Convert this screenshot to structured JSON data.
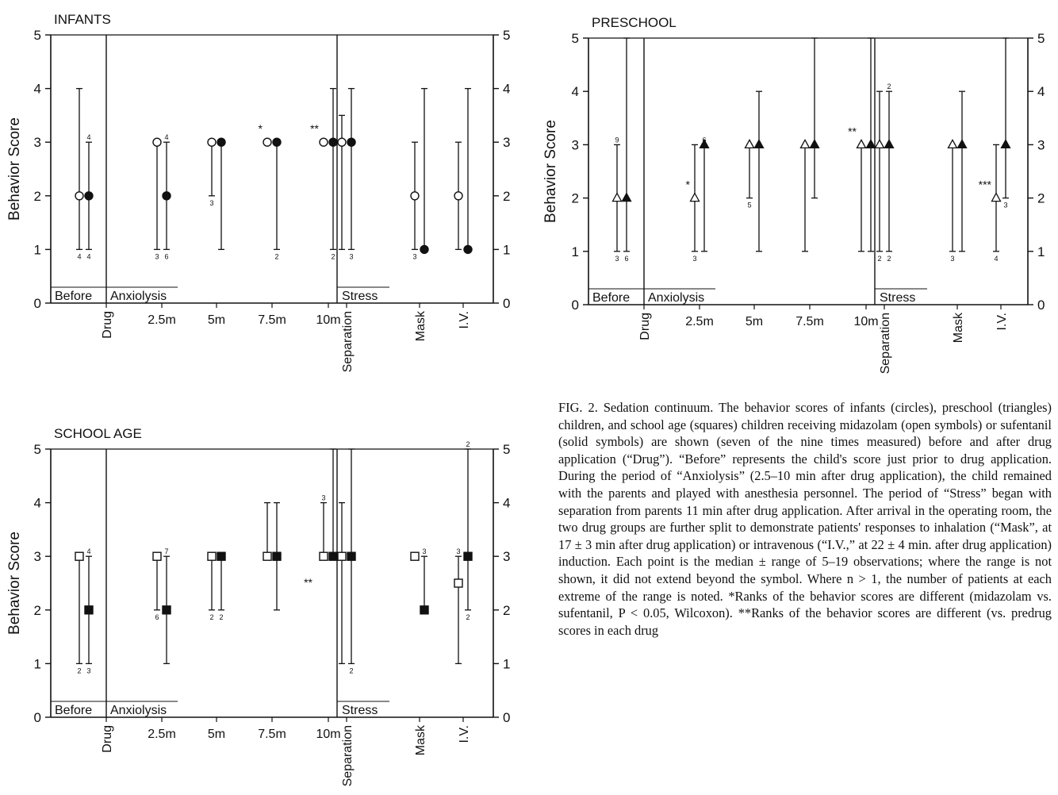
{
  "figure": {
    "caption_label": "FIG. 2.",
    "caption_text": "Sedation continuum. The behavior scores of infants (circles), preschool (triangles) children, and school age (squares) children receiving midazolam (open symbols) or sufentanil (solid symbols) are shown (seven of the nine times measured) before and after drug application (“Drug”). “Before” represents the child's score just prior to drug application. During the period of “Anxiolysis” (2.5–10 min after drug application), the child remained with the parents and played with anesthesia personnel. The period of “Stress” began with separation from parents 11 min after drug application. After arrival in the operating room, the two drug groups are further split to demonstrate patients' responses to inhalation (“Mask”, at 17 ± 3 min after drug application) or intravenous (“I.V.,” at 22 ± 4 min. after drug application) induction. Each point is the median ± range of 5–19 observations; where the range is not shown, it did not extend beyond the symbol. Where n > 1, the number of patients at each extreme of the range is noted. *Ranks of the behavior scores are different (midazolam vs. sufentanil, P < 0.05, Wilcoxon). **Ranks of the behavior scores are different (vs. predrug scores in each drug"
  },
  "chart_data": [
    {
      "type": "scatter",
      "title": "INFANTS",
      "ylabel": "Behavior Score",
      "ylim": [
        0,
        5
      ],
      "yticks": [
        "0",
        "1",
        "2",
        "3",
        "4",
        "5"
      ],
      "xticks": [
        "Drug",
        "2.5m",
        "5m",
        "7.5m",
        "10m",
        "Separation",
        "Mask",
        "I.V."
      ],
      "period_labels": [
        "Before",
        "Anxiolysis",
        "Stress"
      ],
      "marker": "circle",
      "series": [
        {
          "name": "midazolam",
          "fill": "open",
          "points": [
            {
              "time": "Before",
              "median": 2,
              "low": 1,
              "high": 4,
              "n_low": "4"
            },
            {
              "time": "2.5m",
              "median": 3,
              "low": 1,
              "high": 3,
              "n_low": "3"
            },
            {
              "time": "5m",
              "median": 3,
              "low": 2,
              "high": 3,
              "n_low": "3"
            },
            {
              "time": "7.5m",
              "median": 3,
              "low": 3,
              "high": 3,
              "sig": "*"
            },
            {
              "time": "10m",
              "median": 3,
              "low": 3,
              "high": 3,
              "sig": "**"
            },
            {
              "time": "Separation",
              "median": 3,
              "low": 1,
              "high": 3.5
            },
            {
              "time": "Mask",
              "median": 2,
              "low": 1,
              "high": 3,
              "n_low": "3"
            },
            {
              "time": "I.V.",
              "median": 2,
              "low": 1,
              "high": 3
            }
          ]
        },
        {
          "name": "sufentanil",
          "fill": "solid",
          "points": [
            {
              "time": "Before",
              "median": 2,
              "low": 1,
              "high": 3,
              "n_low": "4",
              "n_high": "4"
            },
            {
              "time": "2.5m",
              "median": 2,
              "low": 1,
              "high": 3,
              "n_low": "6",
              "n_high": "4"
            },
            {
              "time": "5m",
              "median": 3,
              "low": 1,
              "high": 3
            },
            {
              "time": "7.5m",
              "median": 3,
              "low": 1,
              "high": 3,
              "n_low": "2"
            },
            {
              "time": "10m",
              "median": 3,
              "low": 1,
              "high": 4,
              "n_low": "2"
            },
            {
              "time": "Separation",
              "median": 3,
              "low": 1,
              "high": 4,
              "n_low": "3"
            },
            {
              "time": "Mask",
              "median": 1,
              "low": 1,
              "high": 4
            },
            {
              "time": "I.V.",
              "median": 1,
              "low": 1,
              "high": 4
            }
          ]
        }
      ]
    },
    {
      "type": "scatter",
      "title": "PRESCHOOL",
      "ylabel": "Behavior Score",
      "ylim": [
        0,
        5
      ],
      "yticks": [
        "0",
        "1",
        "2",
        "3",
        "4",
        "5"
      ],
      "xticks": [
        "Drug",
        "2.5m",
        "5m",
        "7.5m",
        "10m",
        "Separation",
        "Mask",
        "I.V."
      ],
      "period_labels": [
        "Before",
        "Anxiolysis",
        "Stress"
      ],
      "marker": "triangle",
      "series": [
        {
          "name": "midazolam",
          "fill": "open",
          "points": [
            {
              "time": "Before",
              "median": 2,
              "low": 1,
              "high": 3,
              "n_low": "3",
              "n_high": "9"
            },
            {
              "time": "2.5m",
              "median": 2,
              "low": 1,
              "high": 3,
              "n_low": "3",
              "sig": "*"
            },
            {
              "time": "5m",
              "median": 3,
              "low": 2,
              "high": 3,
              "n_low": "5"
            },
            {
              "time": "7.5m",
              "median": 3,
              "low": 1,
              "high": 3
            },
            {
              "time": "10m",
              "median": 3,
              "low": 1,
              "high": 3,
              "sig": "**"
            },
            {
              "time": "Separation",
              "median": 3,
              "low": 1,
              "high": 4,
              "n_low": "2"
            },
            {
              "time": "Mask",
              "median": 3,
              "low": 1,
              "high": 3,
              "n_low": "3"
            },
            {
              "time": "I.V.",
              "median": 2,
              "low": 1,
              "high": 3,
              "n_low": "4",
              "sig": "***"
            }
          ]
        },
        {
          "name": "sufentanil",
          "fill": "solid",
          "points": [
            {
              "time": "Before",
              "median": 2,
              "low": 1,
              "high": 5,
              "n_low": "6"
            },
            {
              "time": "2.5m",
              "median": 3,
              "low": 1,
              "high": 3,
              "n_high": "6"
            },
            {
              "time": "5m",
              "median": 3,
              "low": 1,
              "high": 4
            },
            {
              "time": "7.5m",
              "median": 3,
              "low": 2,
              "high": 5
            },
            {
              "time": "10m",
              "median": 3,
              "low": 1,
              "high": 5
            },
            {
              "time": "Separation",
              "median": 3,
              "low": 1,
              "high": 4,
              "n_low": "2",
              "n_high": "2"
            },
            {
              "time": "Mask",
              "median": 3,
              "low": 1,
              "high": 4
            },
            {
              "time": "I.V.",
              "median": 3,
              "low": 2,
              "high": 5,
              "n_low": "3"
            }
          ]
        }
      ]
    },
    {
      "type": "scatter",
      "title": "SCHOOL AGE",
      "ylabel": "Behavior Score",
      "ylim": [
        0,
        5
      ],
      "yticks": [
        "0",
        "1",
        "2",
        "3",
        "4",
        "5"
      ],
      "xticks": [
        "Drug",
        "2.5m",
        "5m",
        "7.5m",
        "10m",
        "Separation",
        "Mask",
        "I.V."
      ],
      "period_labels": [
        "Before",
        "Anxiolysis",
        "Stress"
      ],
      "marker": "square",
      "annotations": [
        {
          "text": "**",
          "time": "10m",
          "y": 2.5
        }
      ],
      "series": [
        {
          "name": "midazolam",
          "fill": "open",
          "points": [
            {
              "time": "Before",
              "median": 3,
              "low": 1,
              "high": 3,
              "n_low": "2"
            },
            {
              "time": "2.5m",
              "median": 3,
              "low": 2,
              "high": 3,
              "n_low": "6"
            },
            {
              "time": "5m",
              "median": 3,
              "low": 2,
              "high": 3,
              "n_low": "2"
            },
            {
              "time": "7.5m",
              "median": 3,
              "low": 3,
              "high": 4
            },
            {
              "time": "10m",
              "median": 3,
              "low": 3,
              "high": 4,
              "n_high": "3"
            },
            {
              "time": "Separation",
              "median": 3,
              "low": 1,
              "high": 4
            },
            {
              "time": "Mask",
              "median": 3,
              "low": 3,
              "high": 3
            },
            {
              "time": "I.V.",
              "median": 2.5,
              "low": 1,
              "high": 3,
              "n_high": "3"
            }
          ]
        },
        {
          "name": "sufentanil",
          "fill": "solid",
          "points": [
            {
              "time": "Before",
              "median": 2,
              "low": 1,
              "high": 3,
              "n_low": "3",
              "n_high": "4"
            },
            {
              "time": "2.5m",
              "median": 2,
              "low": 1,
              "high": 3,
              "n_high": "7"
            },
            {
              "time": "5m",
              "median": 3,
              "low": 2,
              "high": 3,
              "n_low": "2"
            },
            {
              "time": "7.5m",
              "median": 3,
              "low": 2,
              "high": 4
            },
            {
              "time": "10m",
              "median": 3,
              "low": 3,
              "high": 5
            },
            {
              "time": "Separation",
              "median": 3,
              "low": 1,
              "high": 5,
              "n_low": "2"
            },
            {
              "time": "Mask",
              "median": 2,
              "low": 2,
              "high": 3,
              "n_high": "3"
            },
            {
              "time": "I.V.",
              "median": 3,
              "low": 2,
              "high": 5,
              "n_low": "2",
              "n_high": "2"
            }
          ]
        }
      ]
    }
  ]
}
